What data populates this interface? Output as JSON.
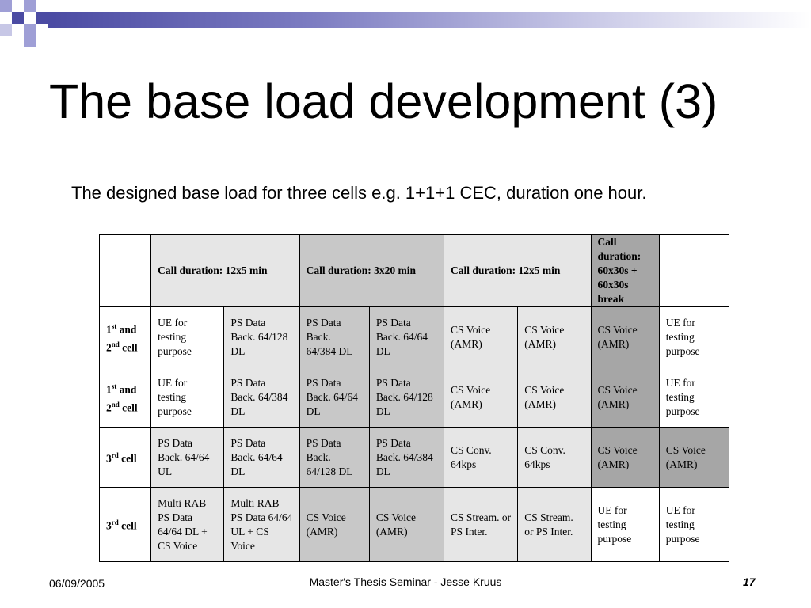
{
  "slide": {
    "title": "The base load development (3)",
    "subtitle": "The designed base load for three cells e.g. 1+1+1 CEC, duration one hour."
  },
  "table": {
    "headers": [
      {
        "text": "",
        "shade": "white"
      },
      {
        "text": "Call duration: 12x5 min",
        "shade": "lg",
        "colspan": 2
      },
      {
        "text": "Call duration: 3x20 min",
        "shade": "mg",
        "colspan": 2
      },
      {
        "text": "Call duration: 12x5 min",
        "shade": "lg",
        "colspan": 2
      },
      {
        "text": "Call duration: 60x30s + 60x30s break",
        "shade": "dg",
        "colspan": 1
      },
      {
        "text": "",
        "shade": "white"
      }
    ],
    "rows": [
      {
        "label_num": "1",
        "label_sup": "st",
        "label_mid": " and",
        "label_num2": "2",
        "label_sup2": "nd",
        "label_end": " cell",
        "cells": [
          {
            "text": "UE for testing purpose",
            "shade": "white"
          },
          {
            "text": "PS Data Back. 64/128 DL",
            "shade": "lg"
          },
          {
            "text": "PS Data Back. 64/384 DL",
            "shade": "mg"
          },
          {
            "text": "PS Data Back. 64/64 DL",
            "shade": "mg"
          },
          {
            "text": "CS Voice (AMR)",
            "shade": "lg"
          },
          {
            "text": "CS Voice (AMR)",
            "shade": "lg"
          },
          {
            "text": "CS Voice (AMR)",
            "shade": "dg"
          },
          {
            "text": "UE for testing purpose",
            "shade": "white"
          }
        ]
      },
      {
        "label_num": "1",
        "label_sup": "st",
        "label_mid": " and",
        "label_num2": "2",
        "label_sup2": "nd",
        "label_end": " cell",
        "cells": [
          {
            "text": "UE for testing purpose",
            "shade": "white"
          },
          {
            "text": "PS Data Back. 64/384 DL",
            "shade": "lg"
          },
          {
            "text": "PS Data Back. 64/64 DL",
            "shade": "mg"
          },
          {
            "text": "PS Data Back. 64/128 DL",
            "shade": "mg"
          },
          {
            "text": "CS Voice (AMR)",
            "shade": "lg"
          },
          {
            "text": "CS Voice (AMR)",
            "shade": "lg"
          },
          {
            "text": "CS Voice (AMR)",
            "shade": "dg"
          },
          {
            "text": "UE for testing purpose",
            "shade": "white"
          }
        ]
      },
      {
        "label_num": "3",
        "label_sup": "rd",
        "label_mid": " cell",
        "label_num2": "",
        "label_sup2": "",
        "label_end": "",
        "cells": [
          {
            "text": "PS Data Back. 64/64 UL",
            "shade": "lg"
          },
          {
            "text": "PS Data Back. 64/64 DL",
            "shade": "lg"
          },
          {
            "text": "PS Data Back. 64/128 DL",
            "shade": "mg"
          },
          {
            "text": "PS Data Back. 64/384 DL",
            "shade": "mg"
          },
          {
            "text": "CS Conv. 64kps",
            "shade": "lg"
          },
          {
            "text": "CS Conv. 64kps",
            "shade": "lg"
          },
          {
            "text": "CS Voice (AMR)",
            "shade": "dg"
          },
          {
            "text": "CS Voice (AMR)",
            "shade": "dg"
          }
        ]
      },
      {
        "label_num": "3",
        "label_sup": "rd",
        "label_mid": " cell",
        "label_num2": "",
        "label_sup2": "",
        "label_end": "",
        "cells": [
          {
            "text": "Multi RAB PS Data 64/64 DL + CS Voice",
            "shade": "lg"
          },
          {
            "text": "Multi RAB PS Data 64/64 UL + CS Voice",
            "shade": "lg"
          },
          {
            "text": "CS Voice (AMR)",
            "shade": "mg"
          },
          {
            "text": "CS Voice (AMR)",
            "shade": "mg"
          },
          {
            "text": "CS Stream. or PS Inter.",
            "shade": "lg"
          },
          {
            "text": "CS Stream. or PS Inter.",
            "shade": "lg"
          },
          {
            "text": "UE for testing purpose",
            "shade": "white"
          },
          {
            "text": "UE for testing purpose",
            "shade": "white"
          }
        ]
      }
    ]
  },
  "footer": {
    "date": "06/09/2005",
    "center": "Master's Thesis Seminar - Jesse Kruus",
    "page": "17"
  },
  "colors": {
    "accent_dark": "#4b4ba3",
    "accent_light": "#9f9fd6",
    "cell_light": "#e6e6e6",
    "cell_mid": "#c8c8c8",
    "cell_dark": "#a6a6a6"
  }
}
